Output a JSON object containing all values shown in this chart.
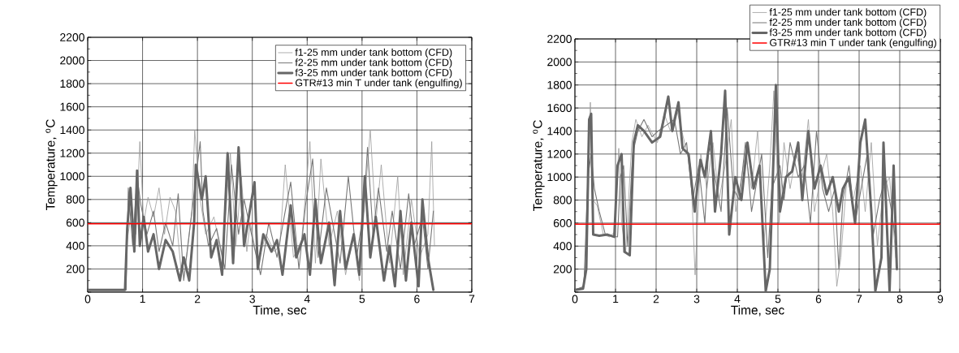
{
  "chart_data": [
    {
      "type": "line",
      "xlabel": "Time, sec",
      "ylabel": "Temperature, $^{o}$C",
      "xlim": [
        0,
        7
      ],
      "ylim": [
        0,
        2200
      ],
      "xticks": [
        0,
        1,
        2,
        3,
        4,
        5,
        6,
        7
      ],
      "yticks": [
        {
          "value": 0,
          "label": null
        },
        200,
        400,
        600,
        800,
        1000,
        1200,
        1400,
        1600,
        1800,
        2000,
        2200
      ],
      "grid": true,
      "legend": "top right",
      "series": [
        {
          "name": "f1-25 mm under tank bottom (CFD)",
          "color": "#9a9a9a",
          "x": [
            0,
            0.68,
            0.72,
            0.8,
            0.88,
            0.95,
            1.02,
            1.1,
            1.2,
            1.3,
            1.4,
            1.5,
            1.6,
            1.7,
            1.8,
            1.9,
            1.95,
            2.05,
            2.15,
            2.3,
            2.45,
            2.6,
            2.7,
            2.8,
            2.9,
            2.96,
            3.1,
            3.25,
            3.4,
            3.5,
            3.6,
            3.75,
            3.9,
            4.05,
            4.15,
            4.25,
            4.4,
            4.55,
            4.7,
            4.85,
            4.95,
            5.05,
            5.15,
            5.25,
            5.35,
            5.5,
            5.65,
            5.75,
            5.9,
            6.05,
            6.2,
            6.27,
            6.32
          ],
          "values": [
            20,
            20,
            450,
            700,
            500,
            1300,
            600,
            820,
            650,
            900,
            500,
            820,
            700,
            200,
            300,
            700,
            1400,
            800,
            500,
            650,
            300,
            1200,
            400,
            1000,
            350,
            600,
            250,
            500,
            350,
            400,
            1100,
            300,
            450,
            1300,
            250,
            1150,
            400,
            700,
            150,
            500,
            100,
            800,
            1400,
            600,
            1100,
            250,
            1000,
            150,
            800,
            300,
            500,
            1300,
            400
          ]
        },
        {
          "name": "f2-25 mm under tank bottom (CFD)",
          "color": "#777777",
          "x": [
            0,
            0.7,
            0.74,
            0.82,
            0.9,
            0.97,
            1.08,
            1.2,
            1.3,
            1.42,
            1.55,
            1.65,
            1.75,
            1.85,
            1.95,
            2.05,
            2.1,
            2.2,
            2.35,
            2.5,
            2.62,
            2.75,
            2.85,
            3.03,
            3.15,
            3.3,
            3.45,
            3.6,
            3.7,
            3.85,
            3.97,
            4.1,
            4.2,
            4.35,
            4.5,
            4.6,
            4.75,
            4.9,
            5.03,
            5.1,
            5.2,
            5.3,
            5.45,
            5.55,
            5.7,
            5.85,
            5.95,
            6.1,
            6.2,
            6.3
          ],
          "values": [
            20,
            20,
            900,
            400,
            1000,
            750,
            500,
            700,
            350,
            600,
            400,
            850,
            100,
            500,
            900,
            1300,
            700,
            400,
            550,
            200,
            1100,
            500,
            800,
            400,
            150,
            600,
            300,
            700,
            950,
            200,
            750,
            1150,
            300,
            900,
            500,
            250,
            1000,
            300,
            700,
            1250,
            500,
            900,
            350,
            700,
            200,
            850,
            400,
            650,
            200,
            700
          ]
        },
        {
          "name": "f3-25 mm under tank bottom (CFD)",
          "color": "#666666",
          "x": [
            0,
            0.68,
            0.72,
            0.78,
            0.85,
            0.9,
            0.95,
            1.02,
            1.1,
            1.2,
            1.3,
            1.42,
            1.55,
            1.68,
            1.75,
            1.85,
            1.94,
            1.97,
            2.08,
            2.15,
            2.25,
            2.35,
            2.45,
            2.55,
            2.65,
            2.75,
            2.85,
            3.04,
            3.1,
            3.2,
            3.35,
            3.45,
            3.55,
            3.7,
            3.8,
            3.95,
            4.05,
            4.15,
            4.25,
            4.4,
            4.5,
            4.6,
            4.7,
            4.85,
            4.95,
            5.05,
            5.15,
            5.25,
            5.4,
            5.5,
            5.6,
            5.7,
            5.8,
            5.9,
            6.03,
            6.1,
            6.2,
            6.3
          ],
          "values": [
            20,
            20,
            550,
            900,
            350,
            1050,
            400,
            650,
            350,
            500,
            200,
            450,
            350,
            100,
            300,
            100,
            600,
            1100,
            800,
            1000,
            300,
            450,
            150,
            1200,
            250,
            1250,
            400,
            950,
            200,
            500,
            350,
            450,
            150,
            750,
            300,
            500,
            150,
            800,
            250,
            600,
            60,
            700,
            200,
            500,
            150,
            1000,
            300,
            650,
            100,
            400,
            50,
            700,
            100,
            600,
            50,
            800,
            300,
            20
          ]
        }
      ],
      "ref_lines": [
        {
          "axis": "y",
          "value": 590,
          "label": "GTR#13 min T under tank (engulfing)",
          "color": "#ff0000"
        }
      ]
    },
    {
      "type": "line",
      "xlabel": "Time, sec",
      "ylabel": "Temperature, $^{o}$C",
      "xlim": [
        0,
        9
      ],
      "ylim": [
        0,
        2200
      ],
      "xticks": [
        0,
        1,
        2,
        3,
        4,
        5,
        6,
        7,
        8,
        9
      ],
      "yticks": [
        {
          "value": 0,
          "label": null
        },
        200,
        400,
        600,
        800,
        1000,
        1200,
        1400,
        1600,
        1800,
        2000,
        2200
      ],
      "grid": true,
      "legend": "top right",
      "series": [
        {
          "name": "f1-25 mm under tank bottom (CFD)",
          "color": "#9a9a9a",
          "x": [
            0,
            0.2,
            0.3,
            0.38,
            0.45,
            0.55,
            0.7,
            0.85,
            0.97,
            1.08,
            1.15,
            1.25,
            1.4,
            1.5,
            1.65,
            1.8,
            2.03,
            2.2,
            2.35,
            2.5,
            2.7,
            2.85,
            2.96,
            3.1,
            3.25,
            3.4,
            3.55,
            3.7,
            3.85,
            3.96,
            4.2,
            4.35,
            4.5,
            4.65,
            4.8,
            4.9,
            5.03,
            5.15,
            5.3,
            5.45,
            5.6,
            5.75,
            5.9,
            6.05,
            6.2,
            6.35,
            6.45,
            6.55,
            6.7,
            6.85,
            7.03,
            7.15,
            7.3,
            7.45,
            7.6,
            7.75,
            7.9
          ],
          "values": [
            20,
            30,
            400,
            1650,
            800,
            750,
            500,
            480,
            520,
            1250,
            600,
            350,
            1300,
            1500,
            1350,
            1450,
            1300,
            1550,
            1400,
            1600,
            1300,
            1100,
            150,
            1200,
            900,
            1300,
            800,
            1100,
            1500,
            700,
            1200,
            900,
            1400,
            400,
            1100,
            1750,
            600,
            1300,
            900,
            1200,
            1000,
            1500,
            700,
            1000,
            1200,
            700,
            50,
            300,
            1000,
            800,
            1100,
            700,
            1300,
            400,
            900,
            1000,
            300
          ]
        },
        {
          "name": "f2-25 mm under tank bottom (CFD)",
          "color": "#777777",
          "x": [
            0,
            0.22,
            0.32,
            0.4,
            0.48,
            0.6,
            0.75,
            0.9,
            1.05,
            1.12,
            1.2,
            1.3,
            1.42,
            1.55,
            1.7,
            1.9,
            2.05,
            2.25,
            2.45,
            2.6,
            2.75,
            2.9,
            3.05,
            3.2,
            3.3,
            3.45,
            3.6,
            3.75,
            3.9,
            4.05,
            4.2,
            4.35,
            4.5,
            4.6,
            4.75,
            4.85,
            5.05,
            5.15,
            5.3,
            5.5,
            5.65,
            5.8,
            5.95,
            6.1,
            6.25,
            6.4,
            6.5,
            6.6,
            6.75,
            6.9,
            7.05,
            7.2,
            7.35,
            7.5,
            7.65,
            7.8,
            7.92
          ],
          "values": [
            20,
            50,
            1000,
            1200,
            900,
            700,
            500,
            490,
            480,
            1000,
            1100,
            400,
            1200,
            1400,
            1500,
            1350,
            1400,
            1450,
            1500,
            1200,
            1300,
            800,
            1100,
            600,
            1300,
            1000,
            700,
            1600,
            900,
            800,
            1300,
            700,
            1000,
            1200,
            300,
            900,
            1100,
            800,
            1300,
            1000,
            1100,
            600,
            1400,
            900,
            700,
            900,
            200,
            800,
            1100,
            600,
            900,
            1200,
            500,
            800,
            1000,
            700,
            400
          ]
        },
        {
          "name": "f3-25 mm under tank bottom (CFD)",
          "color": "#666666",
          "x": [
            0,
            0.2,
            0.28,
            0.35,
            0.4,
            0.45,
            0.6,
            0.8,
            0.97,
            1.05,
            1.15,
            1.22,
            1.35,
            1.45,
            1.55,
            1.7,
            1.9,
            2.1,
            2.3,
            2.4,
            2.55,
            2.65,
            2.8,
            2.95,
            3.09,
            3.2,
            3.35,
            3.45,
            3.6,
            3.7,
            3.8,
            3.95,
            4.1,
            4.25,
            4.4,
            4.55,
            4.7,
            4.8,
            4.95,
            5.05,
            5.2,
            5.35,
            5.5,
            5.6,
            5.75,
            5.9,
            6.05,
            6.2,
            6.35,
            6.5,
            6.6,
            6.75,
            6.9,
            7.03,
            7.15,
            7.3,
            7.4,
            7.55,
            7.6,
            7.75,
            7.85,
            7.93
          ],
          "values": [
            20,
            30,
            200,
            1500,
            1550,
            500,
            490,
            500,
            480,
            1100,
            1200,
            350,
            320,
            1300,
            1450,
            1400,
            1300,
            1350,
            1700,
            1400,
            1650,
            1250,
            1200,
            700,
            1150,
            1000,
            1400,
            700,
            1200,
            1750,
            500,
            1000,
            800,
            1300,
            900,
            1100,
            10,
            200,
            1800,
            700,
            1000,
            1050,
            1300,
            800,
            1400,
            900,
            1100,
            850,
            1000,
            700,
            900,
            1000,
            600,
            1300,
            1500,
            700,
            10,
            300,
            1300,
            10,
            1100,
            200
          ]
        }
      ],
      "ref_lines": [
        {
          "axis": "y",
          "value": 590,
          "label": "GTR#13 min T under tank (engulfing)",
          "color": "#ff0000"
        }
      ]
    }
  ]
}
